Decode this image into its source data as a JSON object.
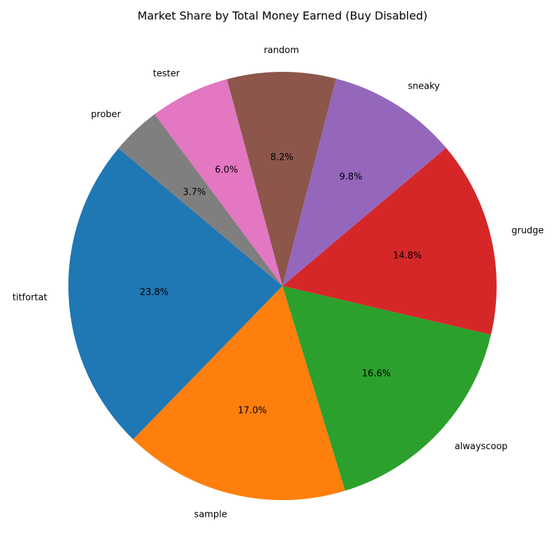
{
  "chart_data": {
    "type": "pie",
    "title": "Market Share by Total Money Earned (Buy Disabled)",
    "start_angle_deg": 140,
    "direction": "counterclockwise",
    "slices": [
      {
        "label": "titfortat",
        "value": 23.8,
        "pct_label": "23.8%",
        "color": "#1f77b4"
      },
      {
        "label": "sample",
        "value": 17.0,
        "pct_label": "17.0%",
        "color": "#ff7f0e"
      },
      {
        "label": "alwayscoop",
        "value": 16.6,
        "pct_label": "16.6%",
        "color": "#2ca02c"
      },
      {
        "label": "grudge",
        "value": 14.8,
        "pct_label": "14.8%",
        "color": "#d62728"
      },
      {
        "label": "sneaky",
        "value": 9.8,
        "pct_label": "9.8%",
        "color": "#9467bd"
      },
      {
        "label": "random",
        "value": 8.2,
        "pct_label": "8.2%",
        "color": "#8c564b"
      },
      {
        "label": "tester",
        "value": 6.0,
        "pct_label": "6.0%",
        "color": "#e377c2"
      },
      {
        "label": "prober",
        "value": 3.7,
        "pct_label": "3.7%",
        "color": "#7f7f7f"
      }
    ]
  }
}
